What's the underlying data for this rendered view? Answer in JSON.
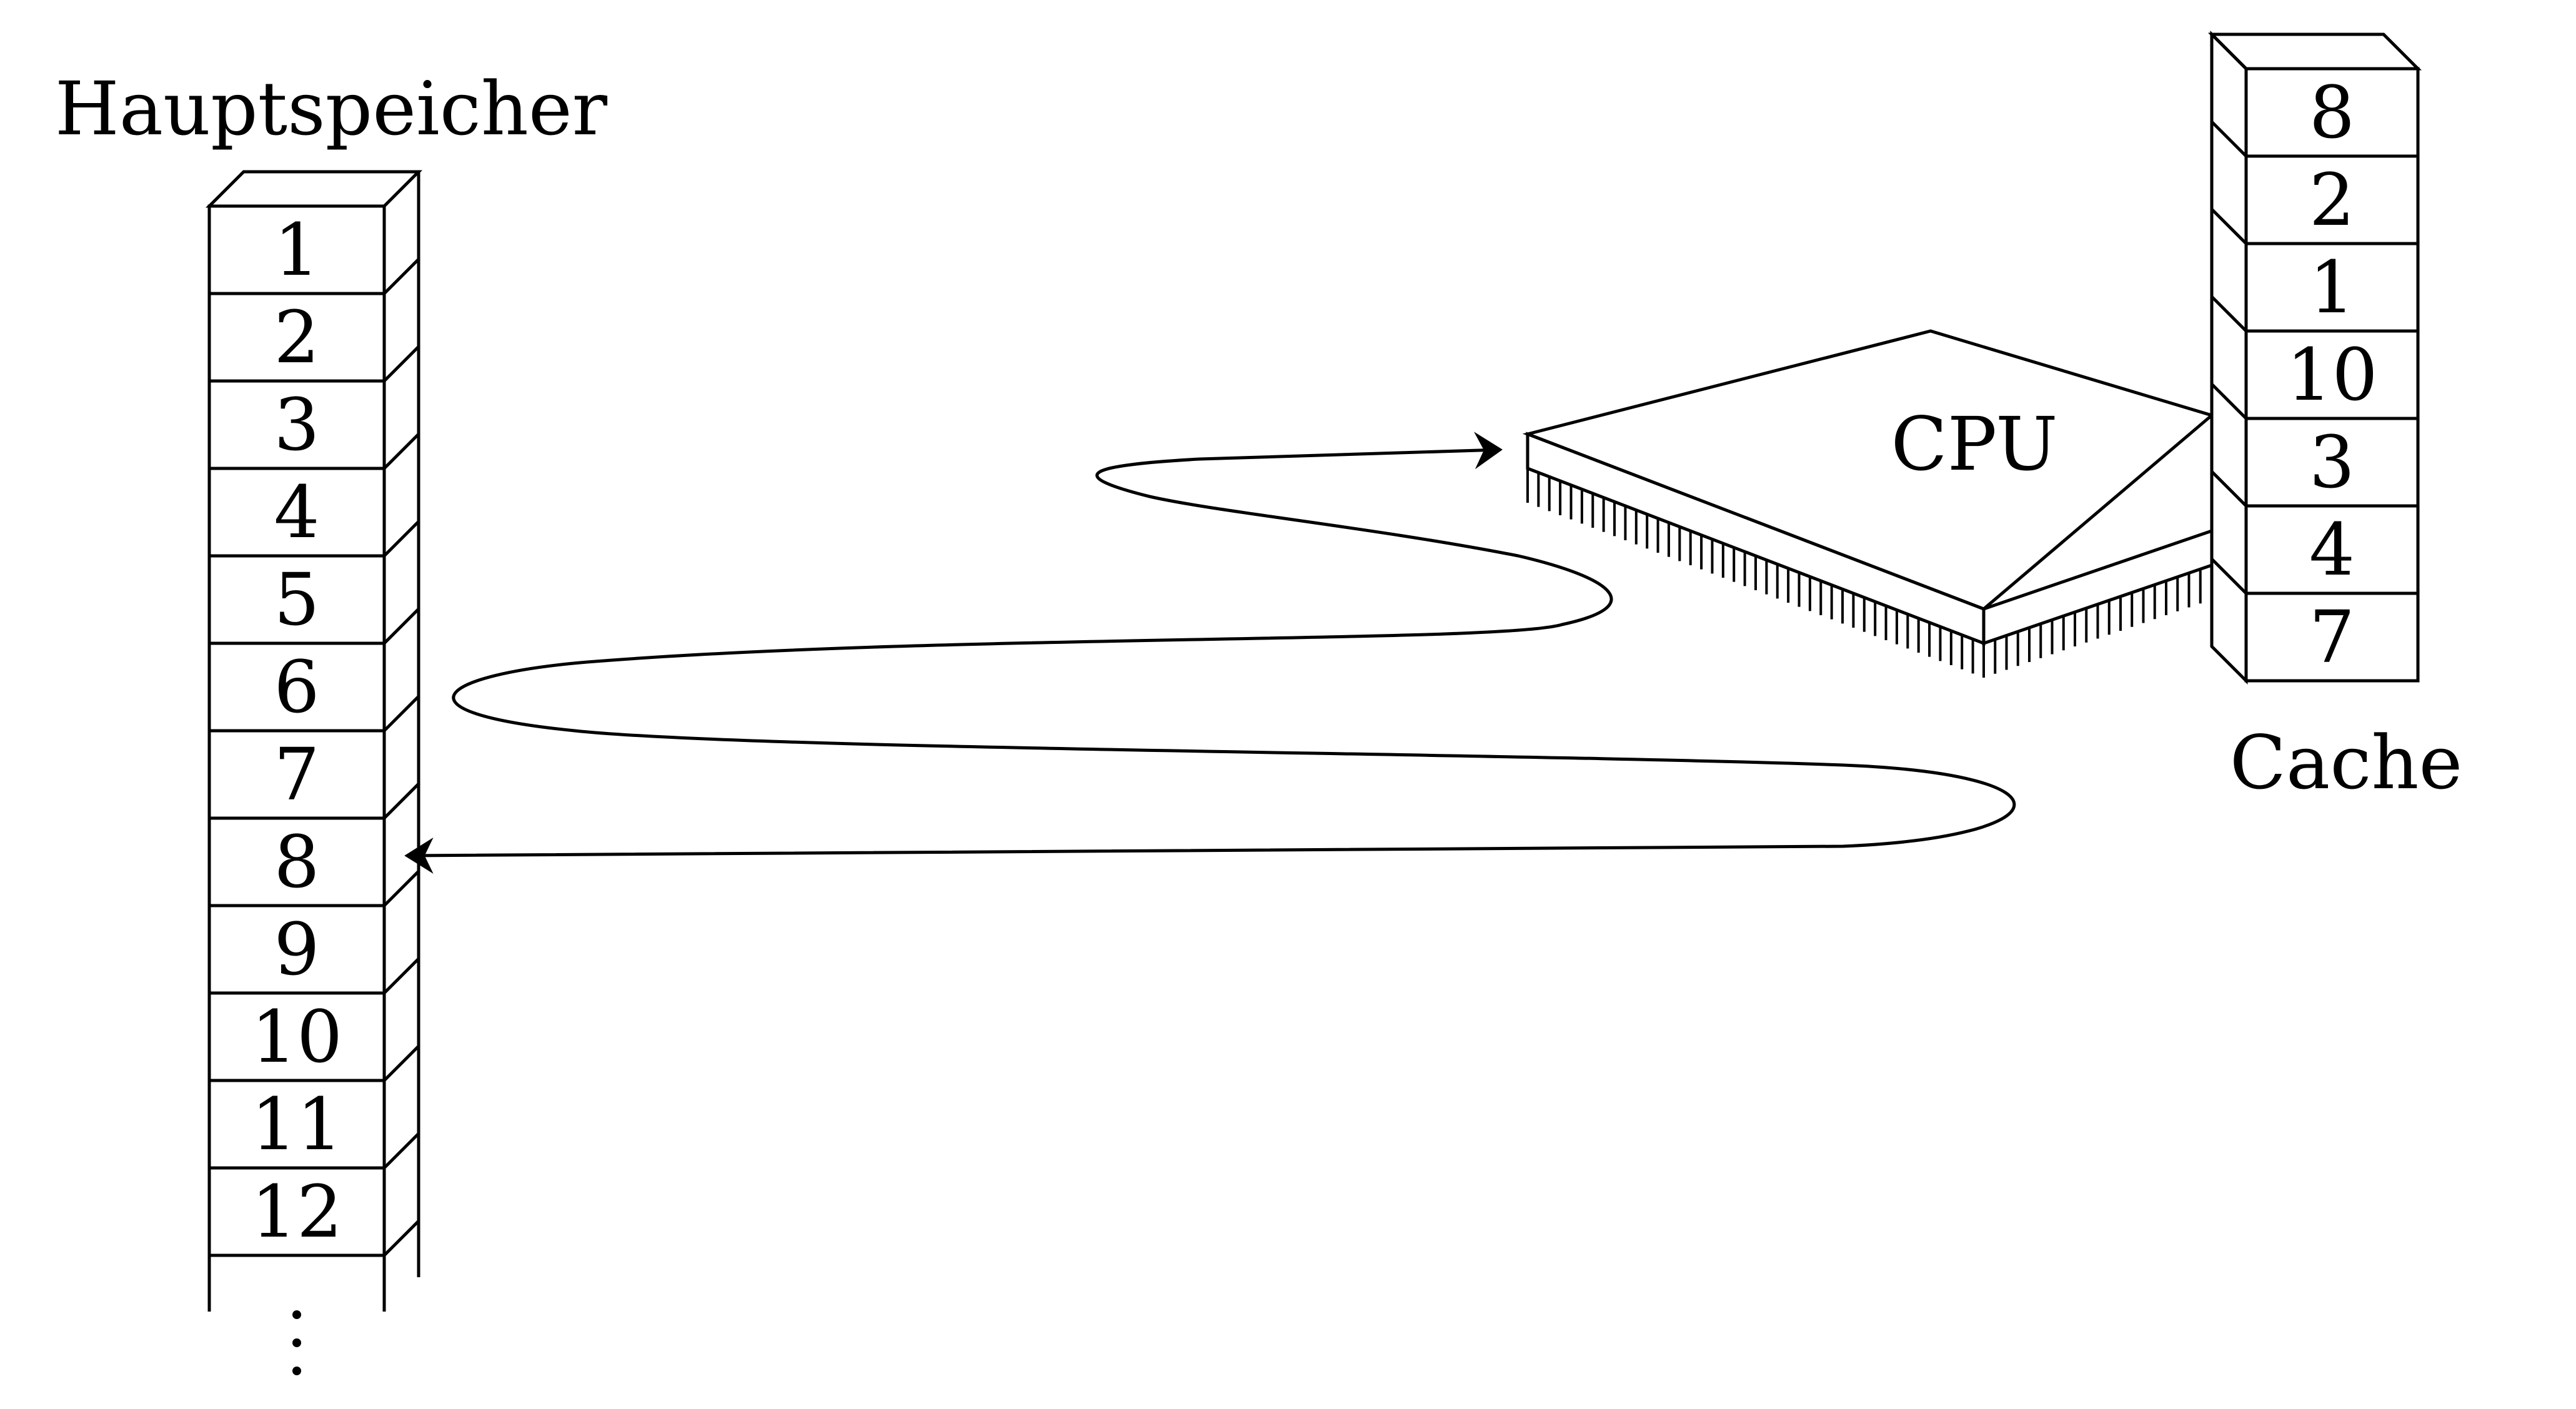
{
  "main_memory": {
    "label": "Hauptspeicher",
    "cells": [
      "1",
      "2",
      "3",
      "4",
      "5",
      "6",
      "7",
      "8",
      "9",
      "10",
      "11",
      "12"
    ],
    "continuation": "⋮"
  },
  "cache": {
    "label": "Cache",
    "cells": [
      "8",
      "2",
      "1",
      "10",
      "3",
      "4",
      "7"
    ]
  },
  "cpu": {
    "label": "CPU"
  }
}
